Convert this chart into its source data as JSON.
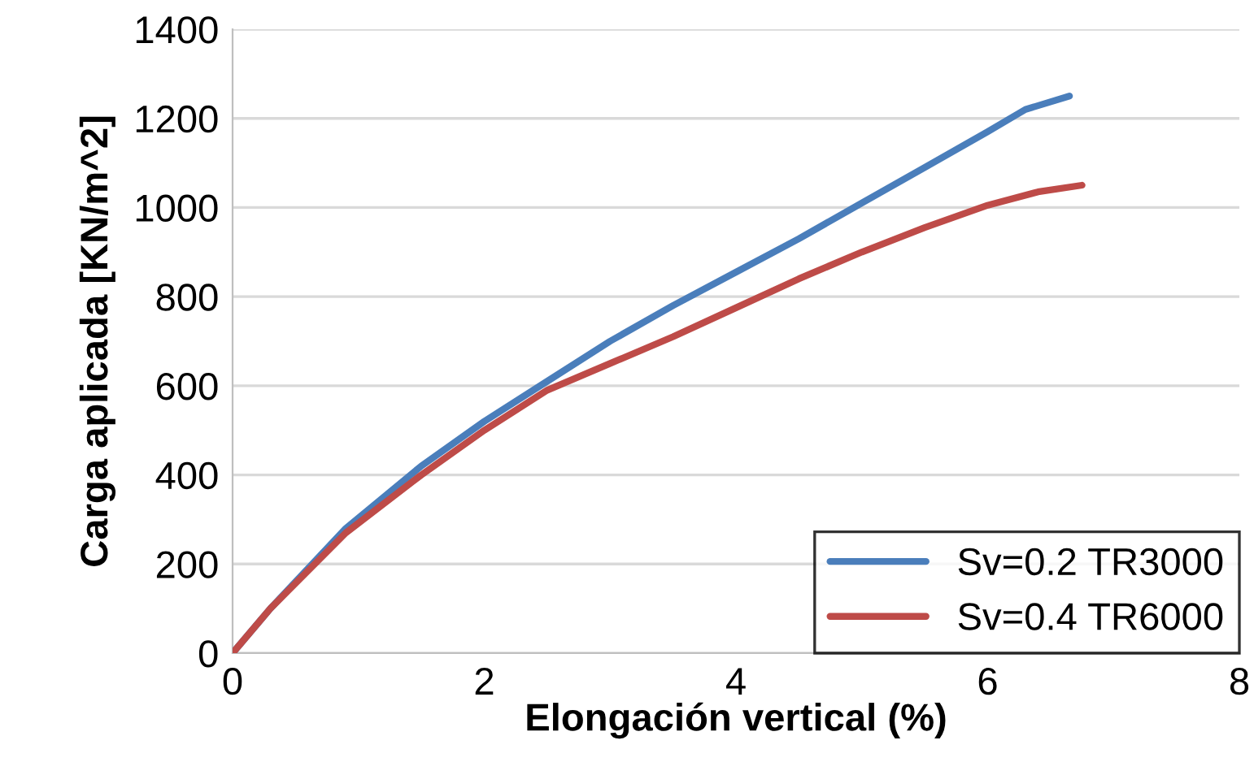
{
  "chart_data": {
    "type": "line",
    "xlabel": "Elongación vertical (%)",
    "ylabel": "Carga aplicada [KN/m^2]",
    "xlim": [
      0,
      8
    ],
    "xticks": [
      0,
      2,
      4,
      6,
      8
    ],
    "ylim": [
      0,
      1400
    ],
    "yticks": [
      0,
      200,
      400,
      600,
      800,
      1000,
      1200,
      1400
    ],
    "grid": "y",
    "legend": "bottom right",
    "marker": "none",
    "line_style": "solid",
    "series": [
      {
        "name": "Sv=0.2 TR3000",
        "color": "#4a7ebb",
        "x": [
          0,
          0.3,
          0.9,
          1.5,
          2,
          2.5,
          3,
          3.5,
          4,
          4.5,
          5,
          5.5,
          6,
          6.3,
          6.65
        ],
        "values": [
          0,
          100,
          280,
          420,
          520,
          610,
          700,
          780,
          855,
          930,
          1010,
          1090,
          1170,
          1220,
          1250
        ]
      },
      {
        "name": "Sv=0.4 TR6000",
        "color": "#be4b48",
        "x": [
          0,
          0.3,
          0.9,
          1.5,
          2,
          2.5,
          3,
          3.5,
          4,
          4.5,
          5,
          5.5,
          6,
          6.4,
          6.75
        ],
        "values": [
          0,
          100,
          270,
          400,
          500,
          590,
          650,
          710,
          775,
          840,
          900,
          955,
          1005,
          1035,
          1050
        ]
      }
    ]
  }
}
